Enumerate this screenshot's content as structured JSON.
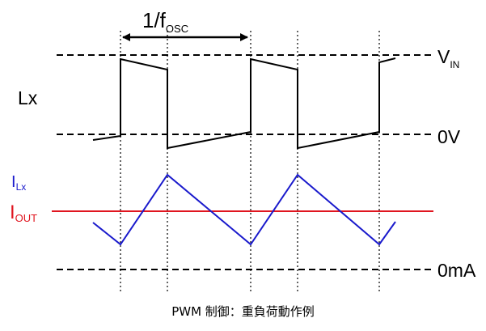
{
  "labels": {
    "period_prefix": "1/f",
    "period_sub": "OSC",
    "vin_main": "V",
    "vin_sub": "IN",
    "lx": "Lx",
    "zero_v": "0V",
    "ilx_main": "I",
    "ilx_sub": "Lx",
    "iout_main": "I",
    "iout_sub": "OUT",
    "zero_ma": "0mA"
  },
  "caption": "PWM 制御：重負荷動作例",
  "colors": {
    "lx_waveform": "#000000",
    "inductor_current": "#1a1acc",
    "output_current": "#e0151f",
    "ilx_label": "#1a1acc",
    "iout_label": "#e0151f",
    "reference_lines": "#000000"
  }
}
